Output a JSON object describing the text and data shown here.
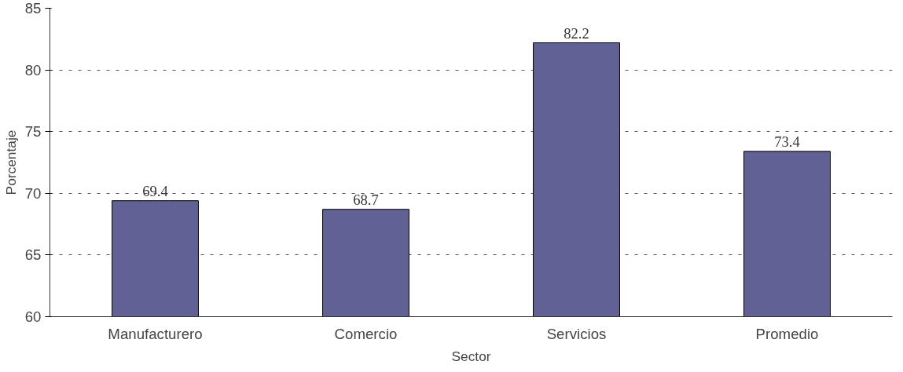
{
  "chart_data": {
    "type": "bar",
    "xlabel": "Sector",
    "ylabel": "Porcentaje",
    "categories": [
      "Manufacturero",
      "Comercio",
      "Servicios",
      "Promedio"
    ],
    "values": [
      69.4,
      68.7,
      82.2,
      73.4
    ],
    "color": "#616195",
    "ylim": [
      60,
      85
    ],
    "yticks": [
      60,
      65,
      70,
      75,
      80,
      85
    ],
    "grid": "y",
    "data_labels": true
  }
}
